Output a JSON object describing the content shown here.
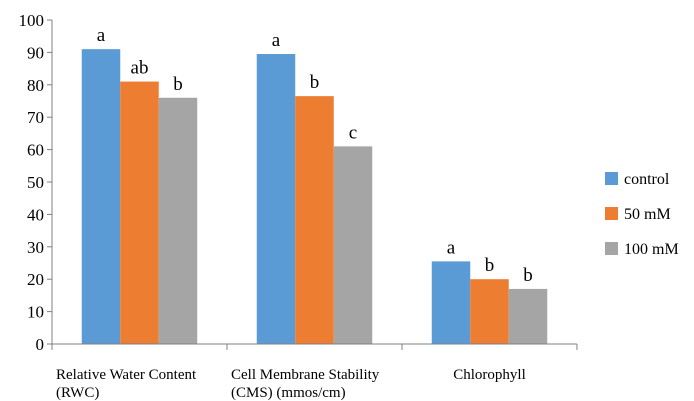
{
  "chart_data": {
    "type": "bar",
    "title": "",
    "xlabel": "",
    "ylabel": "",
    "ylim": [
      0,
      100
    ],
    "yticks": [
      0,
      10,
      20,
      30,
      40,
      50,
      60,
      70,
      80,
      90,
      100
    ],
    "grid": false,
    "legend_position": "right",
    "categories": [
      [
        "Relative Water Content",
        "(RWC)"
      ],
      [
        "Cell Membrane Stability",
        "(CMS) (mmos/cm)"
      ],
      [
        "Chlorophyll"
      ]
    ],
    "series": [
      {
        "name": "control",
        "color": "#5B9BD5",
        "values": [
          91,
          89.5,
          25.5
        ],
        "labels": [
          "a",
          "a",
          "a"
        ]
      },
      {
        "name": "50 mM",
        "color": "#ED7D31",
        "values": [
          81,
          76.5,
          20
        ],
        "labels": [
          "ab",
          "b",
          "b"
        ]
      },
      {
        "name": "100 mM",
        "color": "#A5A5A5",
        "values": [
          76,
          61,
          17
        ],
        "labels": [
          "b",
          "c",
          "b"
        ]
      }
    ]
  }
}
